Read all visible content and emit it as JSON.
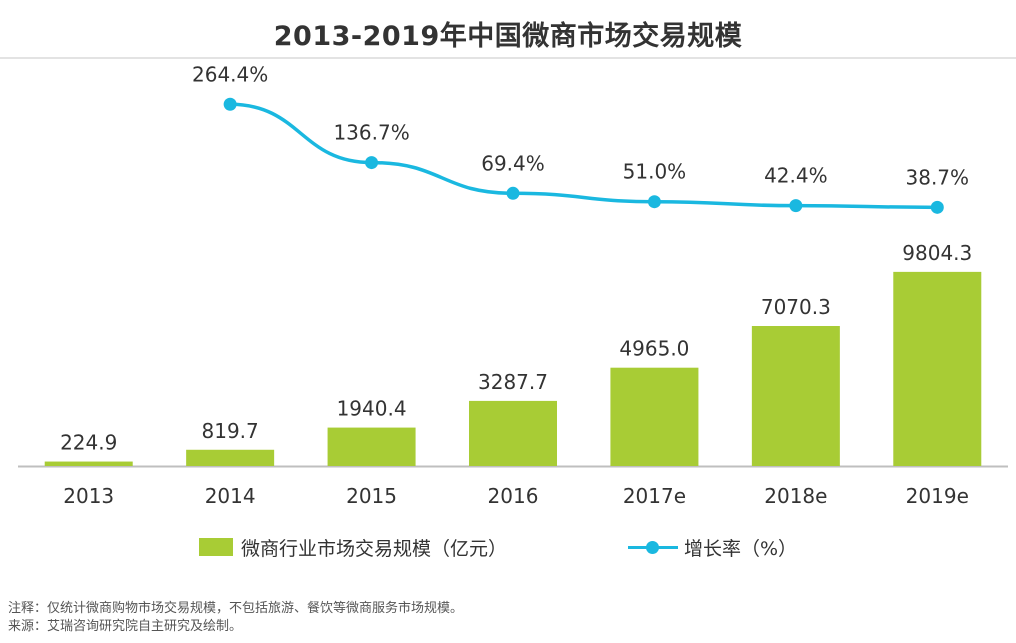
{
  "chart_data": {
    "type": "bar",
    "title": "2013-2019年中国微商市场交易规模",
    "categories": [
      "2013",
      "2014",
      "2015",
      "2016",
      "2017e",
      "2018e",
      "2019e"
    ],
    "series": [
      {
        "name": "微商行业市场交易规模（亿元）",
        "type": "bar",
        "values": [
          224.9,
          819.7,
          1940.4,
          3287.7,
          4965.0,
          7070.3,
          9804.3
        ],
        "labels": [
          "224.9",
          "819.7",
          "1940.4",
          "3287.7",
          "4965.0",
          "7070.3",
          "9804.3"
        ]
      },
      {
        "name": "增长率（%）",
        "type": "line",
        "values": [
          null,
          264.4,
          136.7,
          69.4,
          51.0,
          42.4,
          38.7
        ],
        "labels": [
          "",
          "264.4%",
          "136.7%",
          "69.4%",
          "51.0%",
          "42.4%",
          "38.7%"
        ]
      }
    ],
    "bar_ylim": [
      0,
      10000
    ],
    "line_ylim": [
      0,
      300
    ],
    "colors": {
      "bar": "#a8cc35",
      "line": "#1ab8e0"
    },
    "grid": false,
    "legend": "bottom"
  },
  "legend": {
    "bar_label": "微商行业市场交易规模（亿元）",
    "line_label": "增长率（%）"
  },
  "footnotes": {
    "note": "注释：仅统计微商购物市场交易规模，不包括旅游、餐饮等微商服务市场规模。",
    "source": "来源：艾瑞咨询研究院自主研究及绘制。"
  }
}
